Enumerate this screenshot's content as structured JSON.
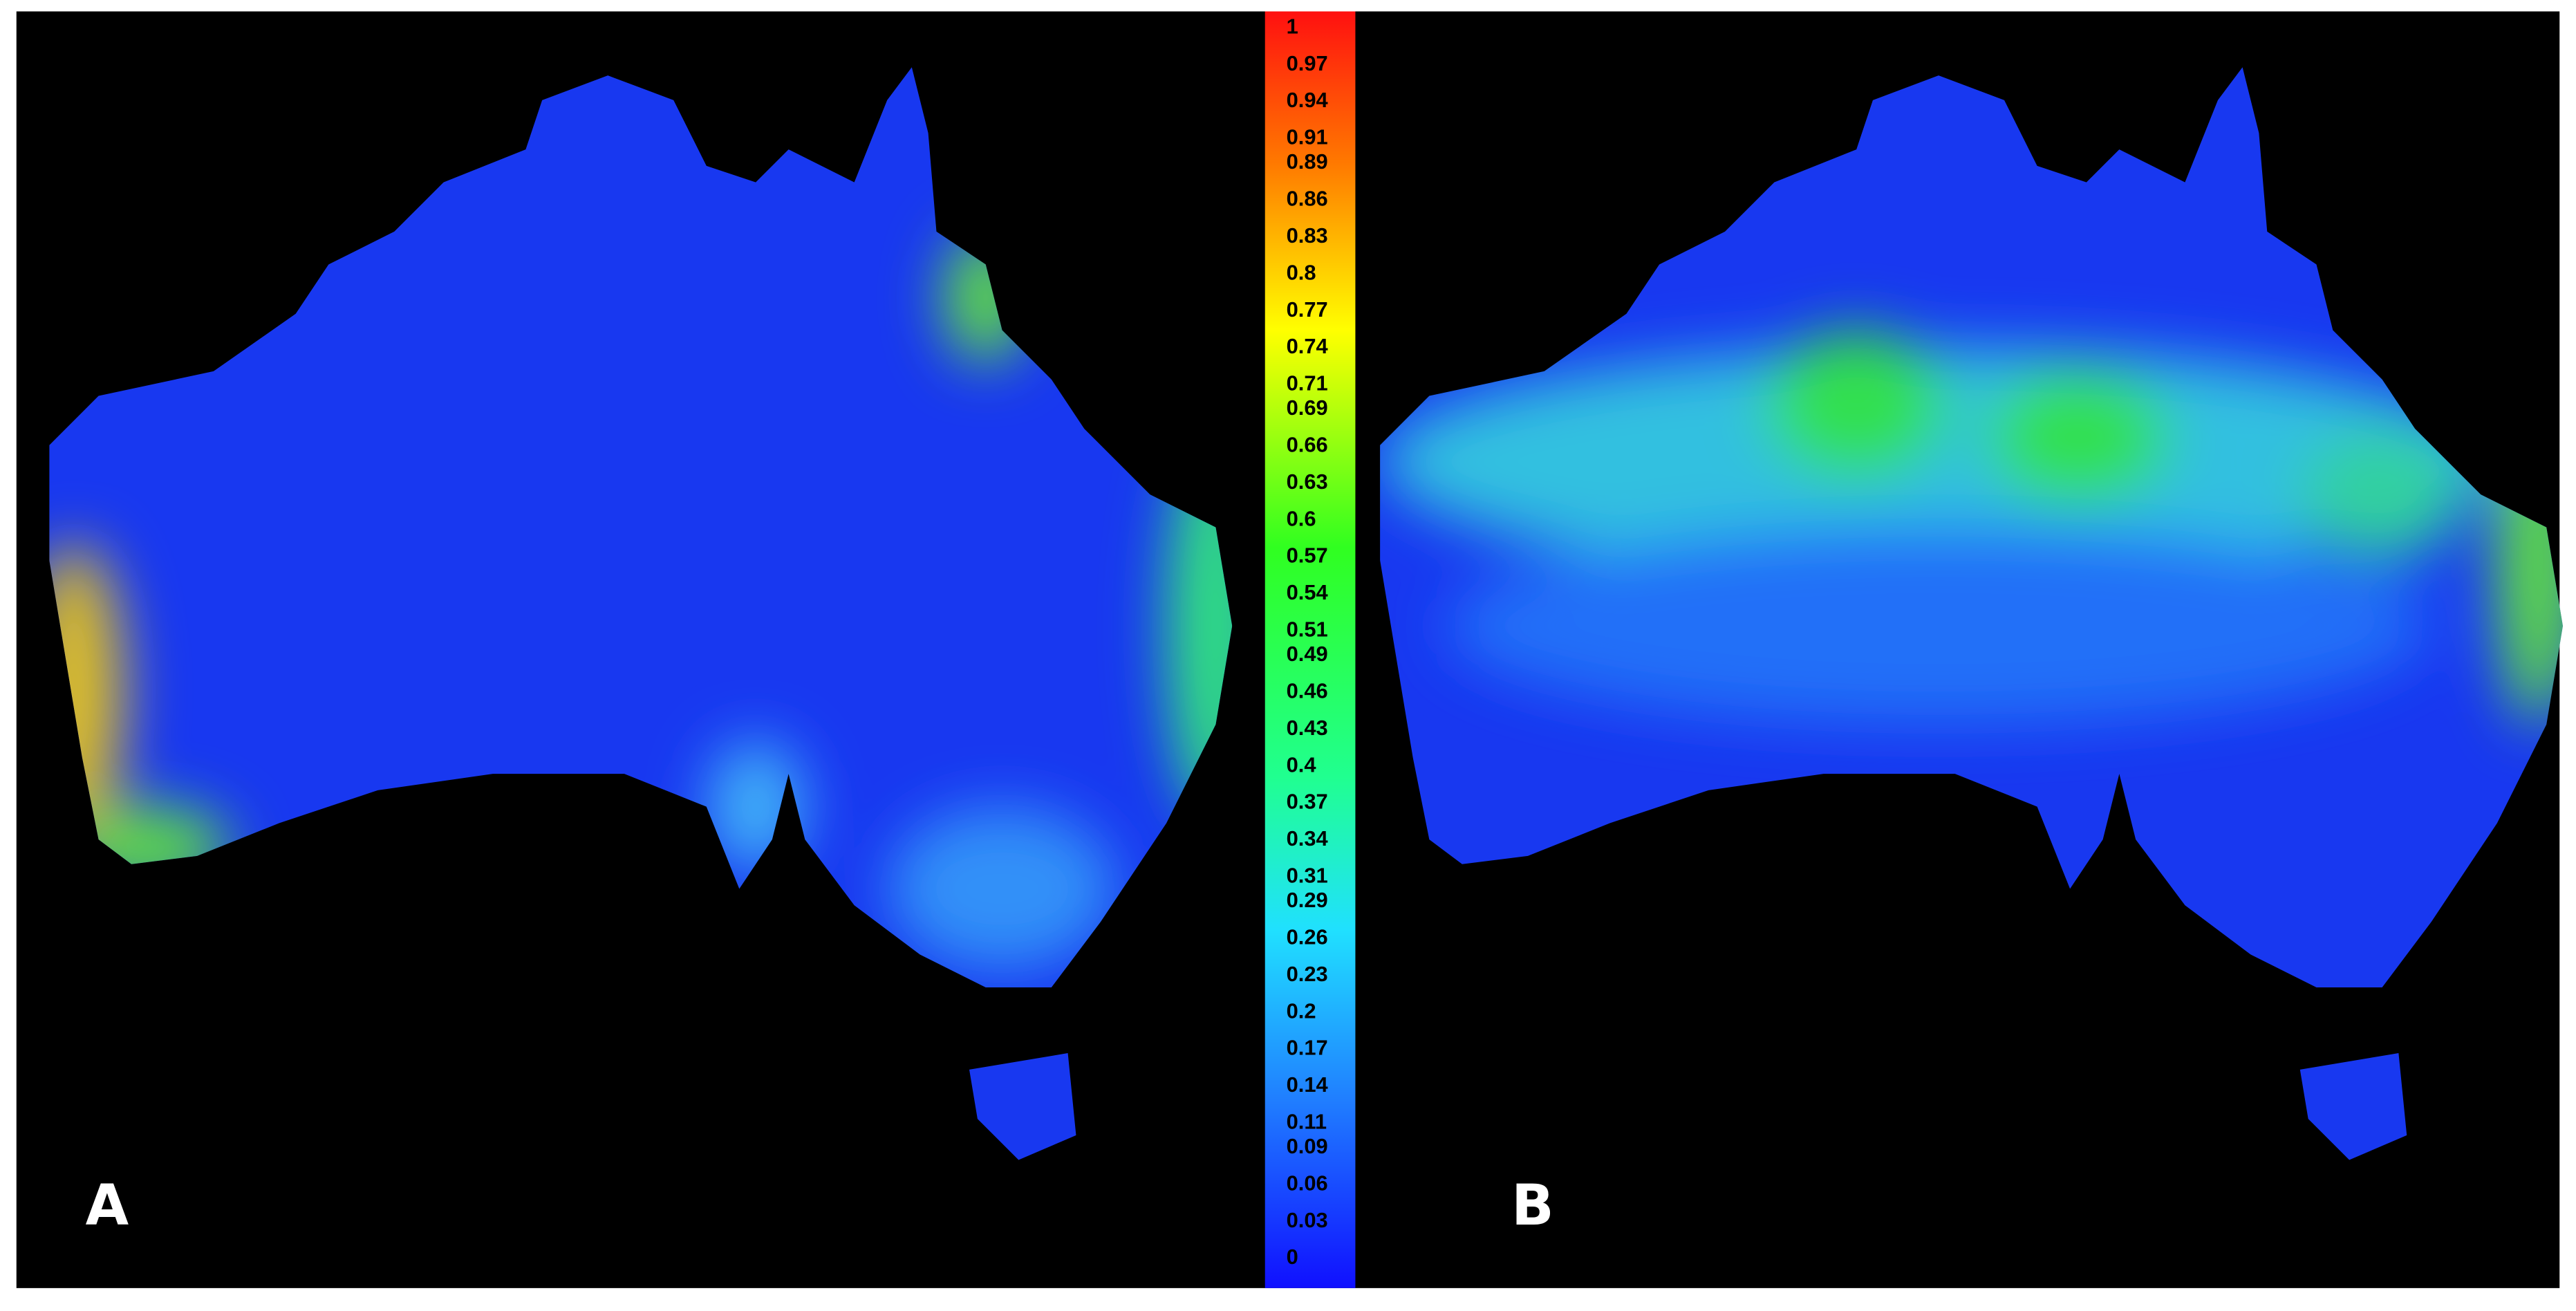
{
  "panels": [
    {
      "label": "A"
    },
    {
      "label": "B"
    }
  ],
  "colorbar": {
    "ticks": [
      1,
      0.97,
      0.94,
      0.91,
      0.89,
      0.86,
      0.83,
      0.8,
      0.77,
      0.74,
      0.71,
      0.69,
      0.66,
      0.63,
      0.6,
      0.57,
      0.54,
      0.51,
      0.49,
      0.46,
      0.43,
      0.4,
      0.37,
      0.34,
      0.31,
      0.29,
      0.26,
      0.23,
      0.2,
      0.17,
      0.14,
      0.11,
      0.09,
      0.06,
      0.03,
      0
    ]
  }
}
